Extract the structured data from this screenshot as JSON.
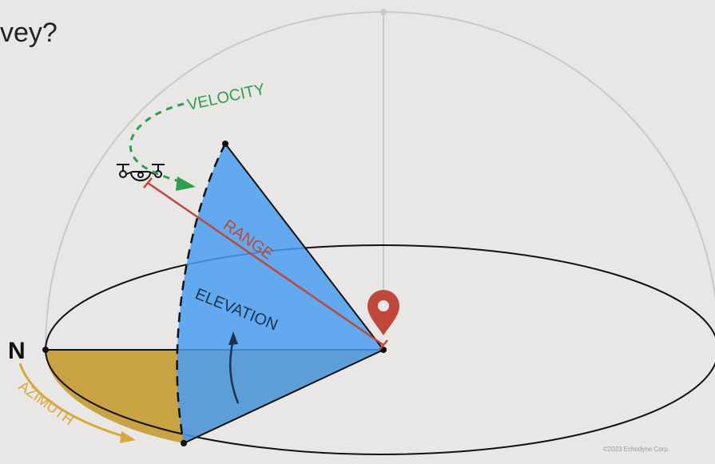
{
  "header": {
    "title": "vey?"
  },
  "labels": {
    "velocity": "VELOCITY",
    "range": "RANGE",
    "elevation": "ELEVATION",
    "azimuth": "AZIMUTH",
    "north": "N"
  },
  "footer": {
    "copyright": "©2023 Echodyne Corp."
  }
}
